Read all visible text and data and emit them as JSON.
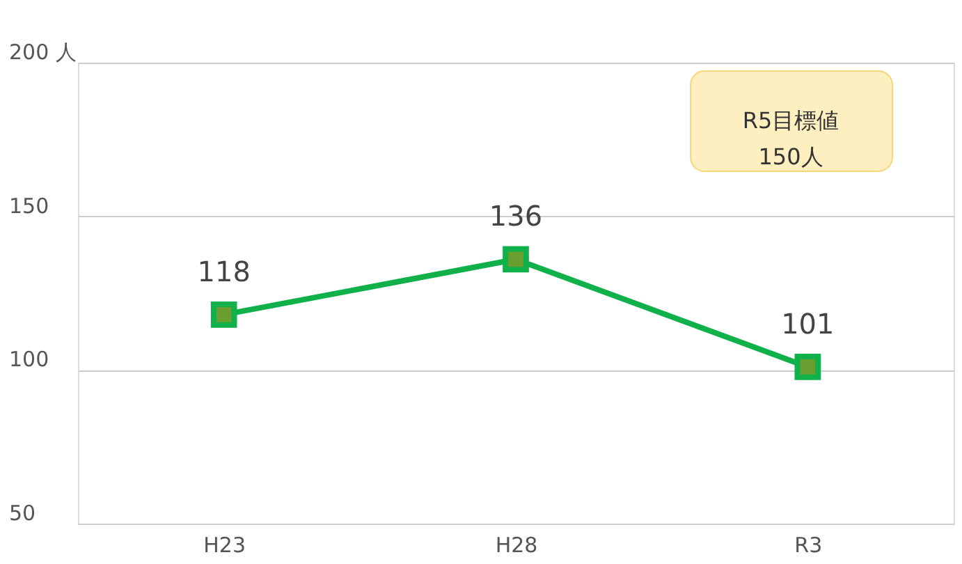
{
  "chart_data": {
    "type": "line",
    "categories": [
      "H23",
      "H28",
      "R3"
    ],
    "series": [
      {
        "color": "#10b04a",
        "values": [
          118,
          136,
          101
        ]
      }
    ],
    "ylim": [
      50,
      200
    ],
    "yticks": [
      50,
      100,
      150,
      {
        "value": 200,
        "label": "200 人"
      }
    ],
    "grid": "y",
    "marker": "square",
    "data_labels": true,
    "annotations": [
      "R5目標値\n150人"
    ]
  }
}
